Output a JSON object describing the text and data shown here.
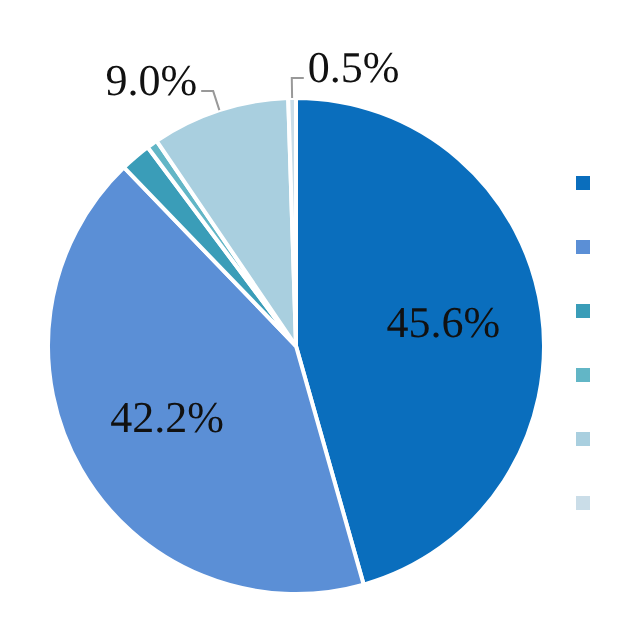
{
  "chart_data": {
    "type": "pie",
    "categories": [
      null,
      null,
      null,
      null,
      null,
      null
    ],
    "values": [
      45.6,
      42.2,
      2.0,
      0.7,
      9.0,
      0.5
    ],
    "colors": [
      "#0a6ebd",
      "#5b8fd6",
      "#3a9db8",
      "#62b6c6",
      "#a9cfdf",
      "#cadde8"
    ],
    "value_labels": [
      "45.6%",
      "42.2%",
      null,
      null,
      "9.0%",
      "0.5%"
    ]
  }
}
